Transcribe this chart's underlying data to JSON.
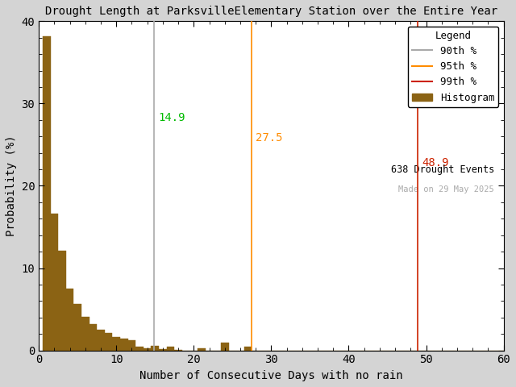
{
  "title": "Drought Length at ParksvilleElementary Station over the Entire Year",
  "xlabel": "Number of Consecutive Days with no rain",
  "ylabel": "Probability (%)",
  "xlim": [
    0,
    60
  ],
  "ylim": [
    0,
    40
  ],
  "xticks": [
    0,
    10,
    20,
    30,
    40,
    50,
    60
  ],
  "yticks": [
    0,
    10,
    20,
    30,
    40
  ],
  "percentile_90": 14.9,
  "percentile_95": 27.5,
  "percentile_99": 48.9,
  "percentile_90_color": "#aaaaaa",
  "percentile_95_color": "#ff8c00",
  "percentile_99_color": "#cc2200",
  "percentile_90_label_color": "#00bb00",
  "percentile_95_label_color": "#ff8c00",
  "percentile_99_label_color": "#cc2200",
  "histogram_color": "#8B6314",
  "histogram_edgecolor": "#8B6314",
  "n_events": 638,
  "made_on": "29 May 2025",
  "background_color": "#d4d4d4",
  "plot_bg_color": "#ffffff",
  "bar_heights": [
    38.2,
    16.6,
    12.1,
    7.5,
    5.6,
    4.1,
    3.2,
    2.5,
    2.1,
    1.6,
    1.4,
    1.2,
    0.5,
    0.3,
    0.6,
    0.2,
    0.5,
    0.1,
    0.0,
    0.0,
    0.3,
    0.0,
    0.0,
    0.9,
    0.0,
    0.0,
    0.5,
    0.0,
    0.0,
    0.0,
    0.0,
    0.0,
    0.0,
    0.0,
    0.0,
    0.0,
    0.0,
    0.0,
    0.0,
    0.0,
    0.0,
    0.0,
    0.0,
    0.0,
    0.0,
    0.0,
    0.0,
    0.0,
    0.0,
    0.0,
    0.0,
    0.0,
    0.0,
    0.0,
    0.0,
    0.0,
    0.0,
    0.0,
    0.0,
    0.0
  ]
}
